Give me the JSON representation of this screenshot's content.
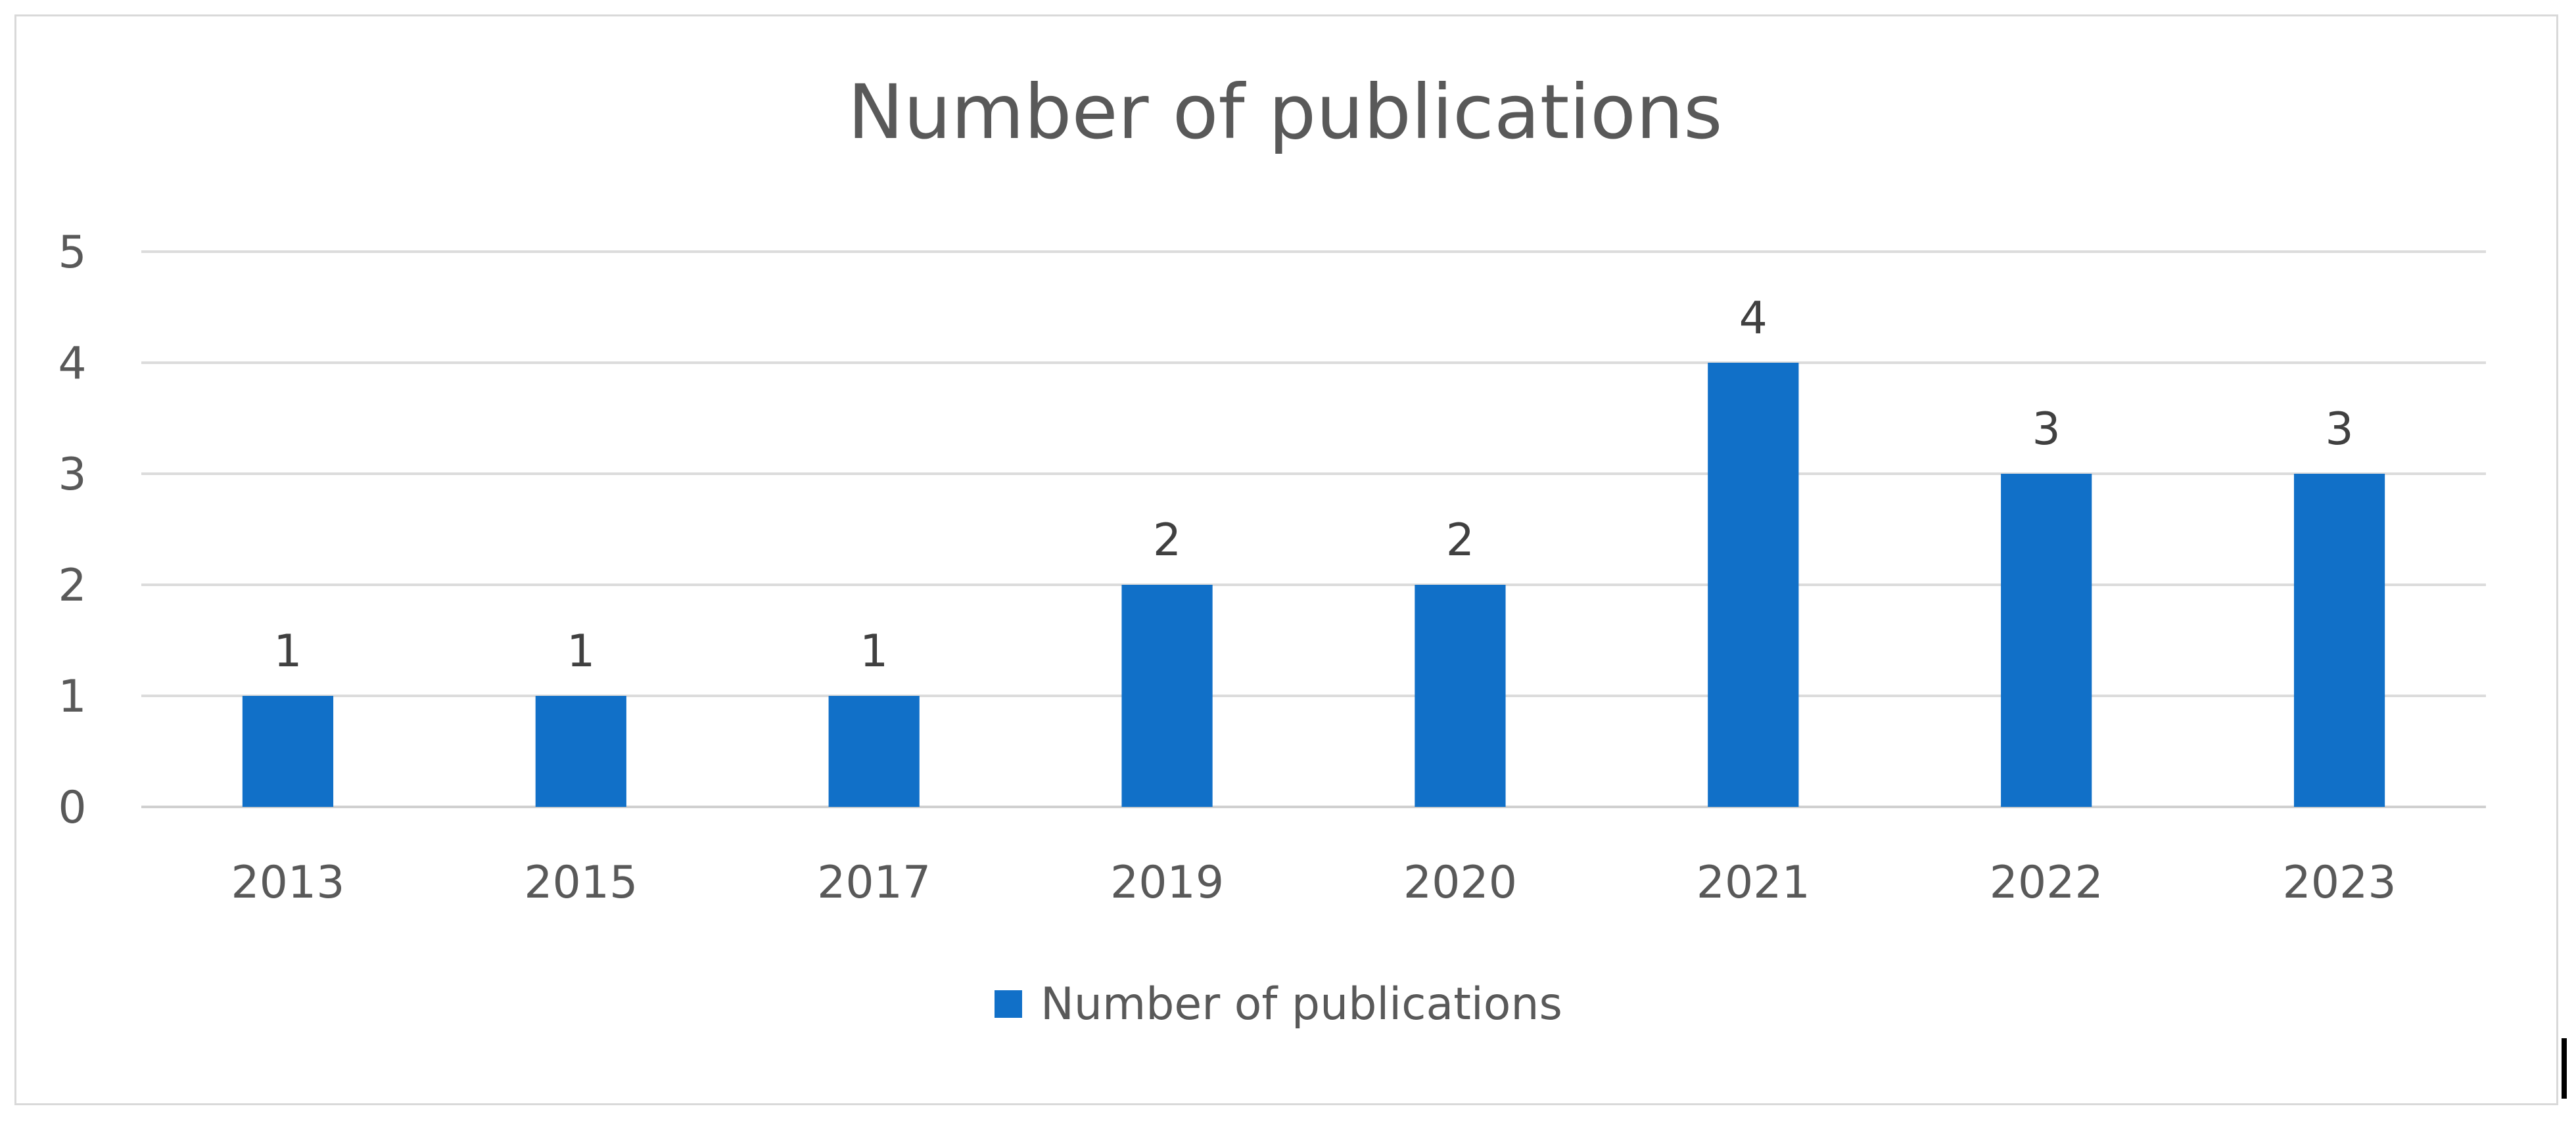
{
  "chart_data": {
    "type": "bar",
    "title": "Number of publications",
    "xlabel": "",
    "ylabel": "",
    "categories": [
      "2013",
      "2015",
      "2017",
      "2019",
      "2020",
      "2021",
      "2022",
      "2023"
    ],
    "series": [
      {
        "name": "Number of publications",
        "values": [
          1,
          1,
          1,
          2,
          2,
          4,
          3,
          3
        ],
        "color": "#1170c8"
      }
    ],
    "ylim": [
      0,
      5
    ],
    "yticks": [
      0,
      1,
      2,
      3,
      4,
      5
    ],
    "grid": true,
    "data_labels": true,
    "legend_position": "bottom"
  }
}
